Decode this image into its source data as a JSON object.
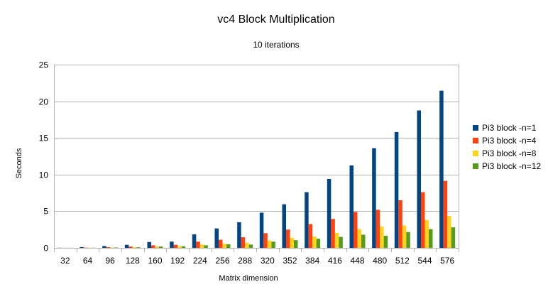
{
  "chart_data": {
    "type": "bar",
    "title": "vc4 Block Multiplication",
    "subtitle": "10 iterations",
    "xlabel": "Matrix dimension",
    "ylabel": "Seconds",
    "ylim": [
      0,
      25
    ],
    "yticks": [
      0,
      5,
      10,
      15,
      20,
      25
    ],
    "grid": true,
    "legend_position": "right",
    "categories": [
      "32",
      "64",
      "96",
      "128",
      "160",
      "192",
      "224",
      "256",
      "288",
      "320",
      "352",
      "384",
      "416",
      "448",
      "480",
      "512",
      "544",
      "576"
    ],
    "series": [
      {
        "name": "Pi3 block -n=1",
        "color": "#004586",
        "values": [
          0.02,
          0.1,
          0.25,
          0.42,
          0.8,
          0.85,
          1.85,
          2.65,
          3.5,
          4.8,
          5.95,
          7.6,
          9.4,
          11.25,
          13.6,
          15.8,
          18.75,
          21.45
        ]
      },
      {
        "name": "Pi3 block -n=4",
        "color": "#ff420e",
        "values": [
          0.01,
          0.04,
          0.1,
          0.18,
          0.35,
          0.42,
          0.85,
          1.1,
          1.45,
          2.0,
          2.5,
          3.25,
          3.95,
          4.9,
          5.2,
          6.5,
          7.6,
          9.15
        ]
      },
      {
        "name": "Pi3 block -n=8",
        "color": "#ffd320",
        "values": [
          0.01,
          0.03,
          0.06,
          0.1,
          0.2,
          0.25,
          0.45,
          0.55,
          0.7,
          1.0,
          1.35,
          1.55,
          2.05,
          2.55,
          2.9,
          3.05,
          3.8,
          4.35
        ]
      },
      {
        "name": "Pi3 block -n=12",
        "color": "#579d1c",
        "values": [
          0.01,
          0.02,
          0.05,
          0.08,
          0.18,
          0.22,
          0.35,
          0.5,
          0.45,
          0.85,
          1.05,
          1.25,
          1.5,
          1.8,
          1.65,
          2.15,
          2.55,
          2.8
        ]
      }
    ]
  }
}
